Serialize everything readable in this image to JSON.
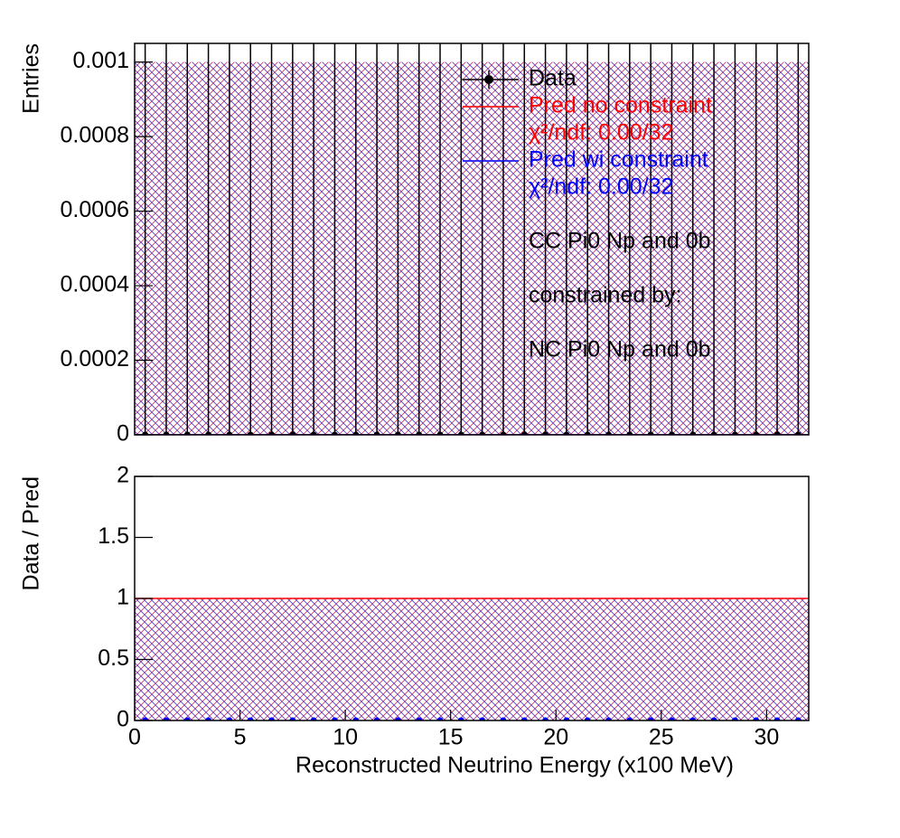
{
  "chart_data": [
    {
      "type": "histogram",
      "ylabel": "Entries",
      "bins": [
        0,
        1,
        2,
        3,
        4,
        5,
        6,
        7,
        8,
        9,
        10,
        11,
        12,
        13,
        14,
        15,
        16,
        17,
        18,
        19,
        20,
        21,
        22,
        23,
        24,
        25,
        26,
        27,
        28,
        29,
        30,
        31,
        32
      ],
      "xlim": [
        0,
        32
      ],
      "ylim": [
        0,
        0.00105
      ],
      "yticks": [
        0,
        0.0002,
        0.0004,
        0.0006,
        0.0008,
        0.001
      ],
      "band": {
        "values": [
          0.001,
          0.001,
          0.001,
          0.001,
          0.001,
          0.001,
          0.001,
          0.001,
          0.001,
          0.001,
          0.001,
          0.001,
          0.001,
          0.001,
          0.001,
          0.001,
          0.001,
          0.001,
          0.001,
          0.001,
          0.001,
          0.001,
          0.001,
          0.001,
          0.001,
          0.001,
          0.001,
          0.001,
          0.001,
          0.001,
          0.001,
          0.001
        ]
      },
      "series": [
        {
          "name": "Data",
          "color": "#000000",
          "style": "points",
          "values": [
            0,
            0,
            0,
            0,
            0,
            0,
            0,
            0,
            0,
            0,
            0,
            0,
            0,
            0,
            0,
            0,
            0,
            0,
            0,
            0,
            0,
            0,
            0,
            0,
            0,
            0,
            0,
            0,
            0,
            0,
            0,
            0
          ],
          "errors": [
            0.00105,
            0.00105,
            0.00105,
            0.00105,
            0.00105,
            0.00105,
            0.00105,
            0.00105,
            0.00105,
            0.00105,
            0.00105,
            0.00105,
            0.00105,
            0.00105,
            0.00105,
            0.00105,
            0.00105,
            0.00105,
            0.00105,
            0.00105,
            0.00105,
            0.00105,
            0.00105,
            0.00105,
            0.00105,
            0.00105,
            0.00105,
            0.00105,
            0.00105,
            0.00105,
            0.00105,
            0.00105
          ]
        },
        {
          "name": "Pred no constraint",
          "color": "#ff0000",
          "style": "step",
          "chi2": "χ²/ndf: 0.00/32",
          "values": [
            0,
            0,
            0,
            0,
            0,
            0,
            0,
            0,
            0,
            0,
            0,
            0,
            0,
            0,
            0,
            0,
            0,
            0,
            0,
            0,
            0,
            0,
            0,
            0,
            0,
            0,
            0,
            0,
            0,
            0,
            0,
            0
          ]
        },
        {
          "name": "Pred wi constraint",
          "color": "#0000ff",
          "style": "step",
          "chi2": "χ²/ndf: 0.00/32",
          "values": [
            0,
            0,
            0,
            0,
            0,
            0,
            0,
            0,
            0,
            0,
            0,
            0,
            0,
            0,
            0,
            0,
            0,
            0,
            0,
            0,
            0,
            0,
            0,
            0,
            0,
            0,
            0,
            0,
            0,
            0,
            0,
            0
          ]
        }
      ],
      "annotations": [
        "CC Pi0 Np and 0b",
        "constrained by:",
        "NC Pi0 Np and 0b"
      ]
    },
    {
      "type": "histogram",
      "ylabel": "Data / Pred",
      "xlabel": "Reconstructed Neutrino Energy (x100 MeV)",
      "bins": [
        0,
        1,
        2,
        3,
        4,
        5,
        6,
        7,
        8,
        9,
        10,
        11,
        12,
        13,
        14,
        15,
        16,
        17,
        18,
        19,
        20,
        21,
        22,
        23,
        24,
        25,
        26,
        27,
        28,
        29,
        30,
        31,
        32
      ],
      "xlim": [
        0,
        32
      ],
      "xticks": [
        0,
        5,
        10,
        15,
        20,
        25,
        30
      ],
      "ylim": [
        0,
        2
      ],
      "yticks": [
        0,
        0.5,
        1,
        1.5,
        2
      ],
      "band": {
        "values": [
          1,
          1,
          1,
          1,
          1,
          1,
          1,
          1,
          1,
          1,
          1,
          1,
          1,
          1,
          1,
          1,
          1,
          1,
          1,
          1,
          1,
          1,
          1,
          1,
          1,
          1,
          1,
          1,
          1,
          1,
          1,
          1
        ]
      },
      "series": [
        {
          "color": "#ff0000",
          "style": "step",
          "values": [
            1,
            1,
            1,
            1,
            1,
            1,
            1,
            1,
            1,
            1,
            1,
            1,
            1,
            1,
            1,
            1,
            1,
            1,
            1,
            1,
            1,
            1,
            1,
            1,
            1,
            1,
            1,
            1,
            1,
            1,
            1,
            1
          ]
        },
        {
          "color": "#0000ff",
          "style": "points",
          "values": [
            0,
            0,
            0,
            0,
            0,
            0,
            0,
            0,
            0,
            0,
            0,
            0,
            0,
            0,
            0,
            0,
            0,
            0,
            0,
            0,
            0,
            0,
            0,
            0,
            0,
            0,
            0,
            0,
            0,
            0,
            0,
            0
          ]
        }
      ]
    }
  ]
}
